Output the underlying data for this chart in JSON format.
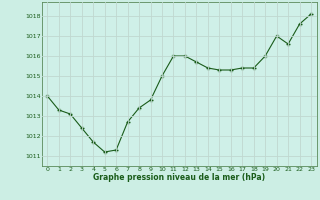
{
  "x": [
    0,
    1,
    2,
    3,
    4,
    5,
    6,
    7,
    8,
    9,
    10,
    11,
    12,
    13,
    14,
    15,
    16,
    17,
    18,
    19,
    20,
    21,
    22,
    23
  ],
  "y": [
    1014.0,
    1013.3,
    1013.1,
    1012.4,
    1011.7,
    1011.2,
    1011.3,
    1012.7,
    1013.4,
    1013.8,
    1015.0,
    1016.0,
    1016.0,
    1015.7,
    1015.4,
    1015.3,
    1015.3,
    1015.4,
    1015.4,
    1016.0,
    1017.0,
    1016.6,
    1017.6,
    1018.1
  ],
  "line_color": "#1a5c1a",
  "marker_color": "#1a5c1a",
  "bg_color": "#cceee4",
  "plot_bg_color": "#cff0e8",
  "grid_color": "#c0d8d0",
  "xlabel": "Graphe pression niveau de la mer (hPa)",
  "xlabel_color": "#1a5c1a",
  "tick_color": "#1a5c1a",
  "spine_color": "#5a8a5a",
  "ylim": [
    1010.5,
    1018.7
  ],
  "xlim": [
    -0.5,
    23.5
  ],
  "yticks": [
    1011,
    1012,
    1013,
    1014,
    1015,
    1016,
    1017,
    1018
  ],
  "xticks": [
    0,
    1,
    2,
    3,
    4,
    5,
    6,
    7,
    8,
    9,
    10,
    11,
    12,
    13,
    14,
    15,
    16,
    17,
    18,
    19,
    20,
    21,
    22,
    23
  ],
  "figsize": [
    3.2,
    2.0
  ],
  "dpi": 100
}
